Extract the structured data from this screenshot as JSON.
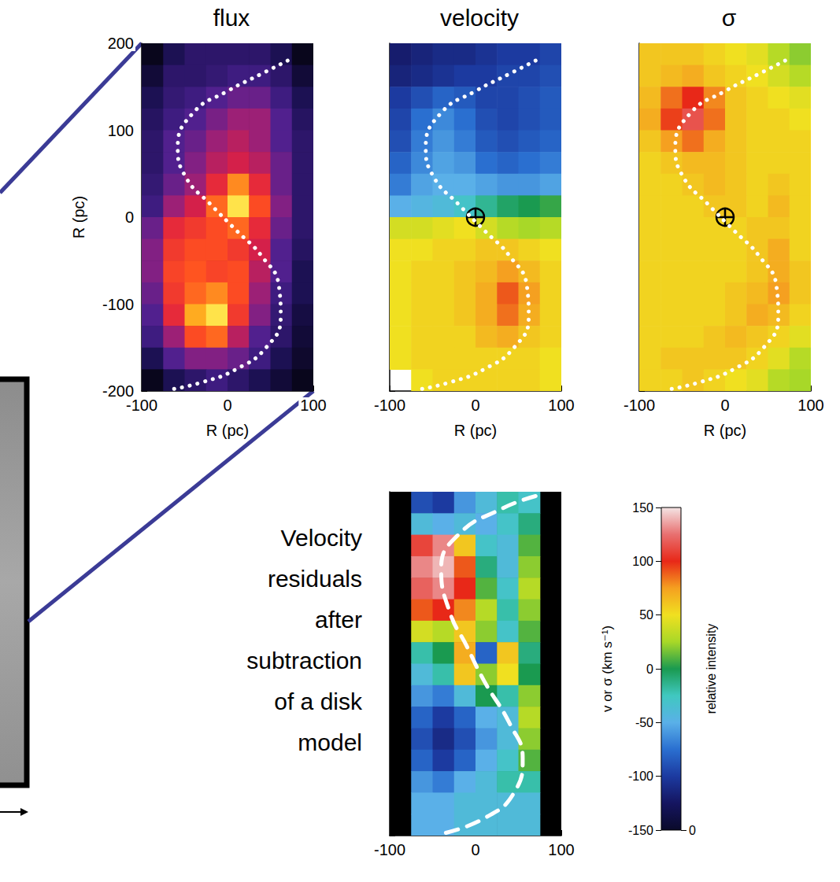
{
  "chart_data": [
    {
      "type": "heatmap",
      "title": "flux",
      "xlabel": "R (pc)",
      "ylabel": "R (pc)",
      "xlim": [
        -100,
        100
      ],
      "ylim": [
        -200,
        200
      ],
      "xticks": [
        -100,
        0,
        100
      ],
      "yticks": [
        -200,
        -100,
        0,
        100,
        200
      ],
      "x": [
        -87.5,
        -62.5,
        -37.5,
        -12.5,
        12.5,
        37.5,
        62.5,
        87.5
      ],
      "y": [
        187.5,
        162.5,
        137.5,
        112.5,
        87.5,
        62.5,
        37.5,
        12.5,
        -12.5,
        -37.5,
        -62.5,
        -87.5,
        -112.5,
        -137.5,
        -162.5,
        -187.5
      ],
      "zlim": [
        0,
        1
      ],
      "values": [
        [
          0.05,
          0.15,
          0.2,
          0.2,
          0.2,
          0.2,
          0.15,
          0.05
        ],
        [
          0.1,
          0.2,
          0.2,
          0.22,
          0.25,
          0.25,
          0.2,
          0.1
        ],
        [
          0.15,
          0.22,
          0.25,
          0.3,
          0.35,
          0.35,
          0.25,
          0.15
        ],
        [
          0.18,
          0.25,
          0.3,
          0.38,
          0.45,
          0.45,
          0.3,
          0.18
        ],
        [
          0.2,
          0.3,
          0.35,
          0.45,
          0.5,
          0.45,
          0.3,
          0.2
        ],
        [
          0.2,
          0.3,
          0.4,
          0.5,
          0.55,
          0.5,
          0.35,
          0.2
        ],
        [
          0.22,
          0.35,
          0.45,
          0.6,
          0.8,
          0.6,
          0.35,
          0.2
        ],
        [
          0.25,
          0.45,
          0.55,
          0.75,
          0.95,
          0.7,
          0.4,
          0.2
        ],
        [
          0.35,
          0.6,
          0.65,
          0.7,
          0.75,
          0.6,
          0.35,
          0.2
        ],
        [
          0.4,
          0.65,
          0.7,
          0.7,
          0.65,
          0.55,
          0.3,
          0.18
        ],
        [
          0.4,
          0.68,
          0.72,
          0.68,
          0.7,
          0.5,
          0.3,
          0.15
        ],
        [
          0.35,
          0.65,
          0.75,
          0.8,
          0.7,
          0.45,
          0.25,
          0.15
        ],
        [
          0.3,
          0.6,
          0.85,
          0.95,
          0.65,
          0.4,
          0.22,
          0.12
        ],
        [
          0.25,
          0.45,
          0.7,
          0.75,
          0.5,
          0.3,
          0.2,
          0.1
        ],
        [
          0.15,
          0.3,
          0.4,
          0.4,
          0.35,
          0.25,
          0.15,
          0.08
        ],
        [
          0.05,
          0.15,
          0.2,
          0.25,
          0.2,
          0.15,
          0.1,
          0.05
        ]
      ],
      "curve": {
        "line_style": "dotted",
        "color": "#ffffff",
        "x": [
          70,
          40,
          0,
          -40,
          -58,
          -48,
          -20,
          10,
          40,
          60,
          62,
          45,
          10,
          -30,
          -65
        ],
        "y": [
          180,
          165,
          145,
          120,
          80,
          45,
          15,
          -15,
          -45,
          -80,
          -115,
          -150,
          -175,
          -190,
          -198
        ]
      }
    },
    {
      "type": "heatmap",
      "title": "velocity",
      "xlabel": "R (pc)",
      "tick_labels": "x",
      "xlim": [
        -100,
        100
      ],
      "ylim": [
        -200,
        200
      ],
      "xticks": [
        -100,
        0,
        100
      ],
      "yticks": [
        -200,
        -100,
        0,
        100,
        200
      ],
      "x": [
        -87.5,
        -62.5,
        -37.5,
        -12.5,
        12.5,
        37.5,
        62.5,
        87.5
      ],
      "y": [
        187.5,
        162.5,
        137.5,
        112.5,
        87.5,
        62.5,
        37.5,
        12.5,
        -12.5,
        -37.5,
        -62.5,
        -87.5,
        -112.5,
        -137.5,
        -162.5,
        -187.5
      ],
      "zlim": [
        -150,
        150
      ],
      "values": [
        [
          -120,
          -115,
          -110,
          -110,
          -105,
          -100,
          -100,
          -95
        ],
        [
          -115,
          -110,
          -105,
          -100,
          -100,
          -95,
          -95,
          -90
        ],
        [
          -100,
          -90,
          -80,
          -85,
          -95,
          -95,
          -90,
          -85
        ],
        [
          -95,
          -75,
          -65,
          -75,
          -90,
          -95,
          -90,
          -85
        ],
        [
          -90,
          -70,
          -60,
          -70,
          -85,
          -90,
          -85,
          -80
        ],
        [
          -80,
          -65,
          -55,
          -60,
          -75,
          -80,
          -75,
          -70
        ],
        [
          -70,
          -55,
          -50,
          -50,
          -55,
          -60,
          -60,
          -55
        ],
        [
          -50,
          -45,
          -40,
          -30,
          -15,
          -5,
          0,
          5
        ],
        [
          40,
          40,
          45,
          50,
          40,
          30,
          25,
          30
        ],
        [
          50,
          50,
          55,
          55,
          60,
          60,
          55,
          50
        ],
        [
          50,
          55,
          55,
          60,
          65,
          75,
          65,
          55
        ],
        [
          50,
          55,
          55,
          60,
          70,
          90,
          75,
          55
        ],
        [
          50,
          55,
          55,
          60,
          70,
          85,
          70,
          55
        ],
        [
          50,
          55,
          55,
          55,
          65,
          70,
          60,
          55
        ],
        [
          50,
          55,
          55,
          55,
          55,
          55,
          55,
          50
        ],
        [
          null,
          50,
          55,
          55,
          55,
          55,
          55,
          50
        ]
      ],
      "center": [
        0,
        0
      ],
      "marker": "crosshair",
      "curve": {
        "line_style": "dotted",
        "color": "#ffffff",
        "x": [
          70,
          40,
          0,
          -40,
          -58,
          -48,
          -20,
          10,
          40,
          60,
          62,
          45,
          10,
          -30,
          -65
        ],
        "y": [
          180,
          165,
          145,
          120,
          80,
          45,
          15,
          -15,
          -45,
          -80,
          -115,
          -150,
          -175,
          -190,
          -198
        ]
      }
    },
    {
      "type": "heatmap",
      "title": "σ",
      "xlabel": "R (pc)",
      "tick_labels": "x",
      "xlim": [
        -100,
        100
      ],
      "ylim": [
        -200,
        200
      ],
      "xticks": [
        -100,
        0,
        100
      ],
      "yticks": [
        -200,
        -100,
        0,
        100,
        200
      ],
      "x": [
        -87.5,
        -62.5,
        -37.5,
        -12.5,
        12.5,
        37.5,
        62.5,
        87.5
      ],
      "y": [
        187.5,
        162.5,
        137.5,
        112.5,
        87.5,
        62.5,
        37.5,
        12.5,
        -12.5,
        -37.5,
        -62.5,
        -87.5,
        -112.5,
        -137.5,
        -162.5,
        -187.5
      ],
      "zlim": [
        -150,
        150
      ],
      "values": [
        [
          60,
          60,
          60,
          55,
          50,
          45,
          30,
          20
        ],
        [
          60,
          65,
          70,
          60,
          55,
          50,
          40,
          30
        ],
        [
          65,
          85,
          100,
          80,
          60,
          55,
          50,
          45
        ],
        [
          70,
          95,
          115,
          85,
          60,
          55,
          55,
          50
        ],
        [
          60,
          75,
          85,
          70,
          60,
          55,
          55,
          55
        ],
        [
          55,
          60,
          65,
          65,
          60,
          55,
          55,
          55
        ],
        [
          55,
          55,
          60,
          65,
          60,
          55,
          60,
          55
        ],
        [
          55,
          55,
          55,
          60,
          60,
          55,
          65,
          55
        ],
        [
          55,
          55,
          55,
          55,
          55,
          60,
          60,
          55
        ],
        [
          55,
          55,
          55,
          55,
          55,
          60,
          70,
          55
        ],
        [
          55,
          55,
          55,
          55,
          55,
          60,
          70,
          60
        ],
        [
          55,
          55,
          55,
          55,
          60,
          65,
          75,
          60
        ],
        [
          55,
          55,
          55,
          55,
          60,
          70,
          65,
          55
        ],
        [
          55,
          55,
          55,
          60,
          65,
          60,
          55,
          45
        ],
        [
          55,
          60,
          60,
          60,
          60,
          55,
          45,
          30
        ],
        [
          55,
          55,
          60,
          55,
          50,
          45,
          30,
          25
        ]
      ],
      "center": [
        0,
        0
      ],
      "marker": "crosshair",
      "curve": {
        "line_style": "dotted",
        "color": "#ffffff",
        "x": [
          70,
          40,
          0,
          -40,
          -58,
          -48,
          -20,
          10,
          40,
          60,
          62,
          45,
          10,
          -30,
          -65
        ],
        "y": [
          180,
          165,
          145,
          120,
          80,
          45,
          15,
          -15,
          -45,
          -80,
          -115,
          -150,
          -175,
          -190,
          -198
        ]
      }
    },
    {
      "type": "heatmap",
      "annotation": "Velocity residuals after subtraction of a disk model",
      "tick_labels": "x",
      "xlim": [
        -100,
        100
      ],
      "ylim": [
        -200,
        200
      ],
      "xticks": [
        -100,
        0,
        100
      ],
      "yticks": [
        -200,
        -100,
        0,
        100,
        200
      ],
      "x": [
        -87.5,
        -62.5,
        -37.5,
        -12.5,
        12.5,
        37.5,
        62.5,
        87.5
      ],
      "y": [
        187.5,
        162.5,
        137.5,
        112.5,
        87.5,
        62.5,
        37.5,
        12.5,
        -12.5,
        -37.5,
        -62.5,
        -87.5,
        -112.5,
        -137.5,
        -162.5,
        -187.5
      ],
      "zlim": [
        -150,
        150
      ],
      "values": [
        [
          null,
          -90,
          -100,
          -60,
          -40,
          -20,
          -30,
          null
        ],
        [
          null,
          -40,
          -50,
          -40,
          -50,
          -30,
          -10,
          null
        ],
        [
          null,
          110,
          130,
          60,
          -30,
          -40,
          10,
          null
        ],
        [
          null,
          130,
          140,
          90,
          -10,
          -40,
          20,
          null
        ],
        [
          null,
          120,
          130,
          100,
          10,
          -30,
          30,
          null
        ],
        [
          null,
          90,
          100,
          80,
          30,
          -20,
          20,
          null
        ],
        [
          null,
          40,
          30,
          60,
          20,
          -30,
          10,
          null
        ],
        [
          null,
          -20,
          0,
          70,
          -80,
          60,
          -10,
          null
        ],
        [
          null,
          -40,
          -20,
          60,
          20,
          50,
          0,
          null
        ],
        [
          null,
          -60,
          -70,
          -40,
          0,
          -20,
          20,
          null
        ],
        [
          null,
          -80,
          -100,
          -80,
          -50,
          -40,
          30,
          null
        ],
        [
          null,
          -90,
          -110,
          -90,
          -60,
          -40,
          20,
          null
        ],
        [
          null,
          -80,
          -100,
          -80,
          -50,
          -30,
          10,
          null
        ],
        [
          null,
          -60,
          -70,
          -50,
          -40,
          -20,
          -20,
          null
        ],
        [
          null,
          -50,
          -50,
          -40,
          -40,
          -40,
          -40,
          null
        ],
        [
          null,
          -50,
          -50,
          -40,
          -40,
          -40,
          -40,
          null
        ]
      ],
      "curve": {
        "line_style": "dashed",
        "color": "#ffffff",
        "x": [
          70,
          30,
          -20,
          -40,
          -30,
          -10,
          10,
          40,
          55,
          45,
          10,
          -40
        ],
        "y": [
          195,
          180,
          150,
          110,
          60,
          20,
          -20,
          -70,
          -110,
          -150,
          -180,
          -198
        ]
      }
    },
    {
      "type": "colorbar",
      "ylabel": "v or σ (km s⁻¹)",
      "ylim": [
        -150,
        150
      ],
      "yticks": [
        -150,
        -100,
        -50,
        0,
        50,
        100,
        150
      ],
      "y2label": "relative intensity",
      "y2lim": [
        0,
        1
      ],
      "y2ticks": [
        0
      ]
    }
  ]
}
